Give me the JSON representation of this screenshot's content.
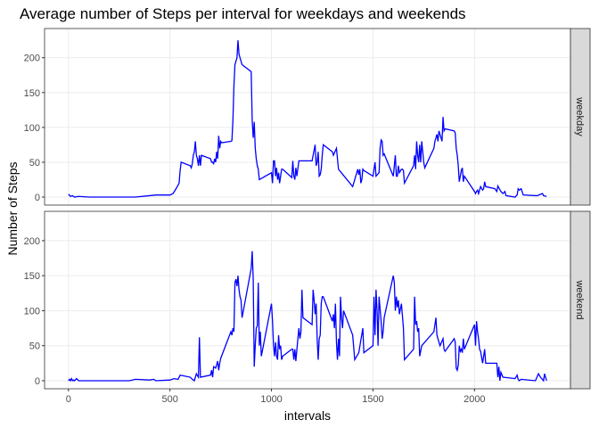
{
  "chart_data": {
    "type": "line",
    "title": "Average number of Steps per interval for weekdays and weekends",
    "x_label": "intervals",
    "y_label": "Number of Steps",
    "facet": true,
    "grid": true,
    "xlim": [
      -117.75,
      2472.75
    ],
    "xticks": [
      0,
      500,
      1000,
      1500,
      2000
    ],
    "ylim": [
      -11.5,
      241.9
    ],
    "yticks": [
      0,
      50,
      100,
      150,
      200
    ],
    "series": [
      {
        "name": "weekday",
        "color": "#0000ff",
        "x": [
          0,
          10,
          20,
          30,
          50,
          100,
          200,
          300,
          330,
          400,
          430,
          500,
          515,
          530,
          545,
          550,
          555,
          600,
          605,
          610,
          615,
          620,
          625,
          630,
          635,
          640,
          645,
          650,
          655,
          700,
          705,
          710,
          715,
          720,
          725,
          730,
          735,
          740,
          745,
          750,
          755,
          800,
          805,
          810,
          815,
          820,
          825,
          830,
          835,
          840,
          845,
          850,
          855,
          900,
          905,
          910,
          915,
          920,
          925,
          930,
          935,
          940,
          1000,
          1005,
          1010,
          1015,
          1020,
          1025,
          1030,
          1035,
          1040,
          1050,
          1055,
          1100,
          1105,
          1110,
          1115,
          1120,
          1125,
          1135,
          1200,
          1215,
          1220,
          1225,
          1230,
          1235,
          1240,
          1245,
          1250,
          1255,
          1300,
          1305,
          1320,
          1330,
          1400,
          1425,
          1430,
          1435,
          1440,
          1445,
          1450,
          1455,
          1500,
          1510,
          1515,
          1530,
          1535,
          1540,
          1545,
          1550,
          1555,
          1600,
          1605,
          1610,
          1615,
          1620,
          1625,
          1630,
          1640,
          1645,
          1650,
          1655,
          1700,
          1705,
          1710,
          1715,
          1720,
          1725,
          1730,
          1735,
          1740,
          1745,
          1750,
          1755,
          1800,
          1805,
          1810,
          1815,
          1820,
          1825,
          1830,
          1840,
          1845,
          1850,
          1855,
          1900,
          1905,
          1910,
          1915,
          1920,
          1925,
          1930,
          1935,
          1940,
          1945,
          1950,
          2000,
          2005,
          2010,
          2015,
          2020,
          2030,
          2040,
          2045,
          2050,
          2055,
          2100,
          2110,
          2115,
          2130,
          2140,
          2150,
          2155,
          2200,
          2210,
          2215,
          2220,
          2230,
          2240,
          2300,
          2310,
          2325,
          2335,
          2340,
          2355
        ],
        "values": [
          4,
          1,
          2,
          0,
          1,
          0,
          0,
          0,
          0,
          2,
          3,
          3,
          5,
          12,
          20,
          38,
          50,
          45,
          42,
          48,
          60,
          65,
          80,
          60,
          55,
          45,
          60,
          45,
          60,
          55,
          50,
          50,
          48,
          55,
          50,
          65,
          55,
          88,
          70,
          80,
          78,
          80,
          81,
          110,
          160,
          190,
          195,
          200,
          225,
          205,
          200,
          195,
          190,
          180,
          110,
          85,
          108,
          70,
          55,
          45,
          40,
          25,
          35,
          20,
          52,
          52,
          30,
          42,
          25,
          35,
          20,
          40,
          40,
          28,
          52,
          30,
          25,
          42,
          30,
          52,
          52,
          75,
          45,
          50,
          65,
          30,
          32,
          40,
          60,
          75,
          65,
          60,
          70,
          40,
          15,
          40,
          32,
          40,
          20,
          25,
          40,
          38,
          30,
          50,
          30,
          35,
          70,
          82,
          80,
          60,
          62,
          30,
          45,
          60,
          30,
          30,
          45,
          35,
          40,
          40,
          38,
          20,
          45,
          60,
          40,
          80,
          60,
          50,
          75,
          50,
          80,
          65,
          50,
          42,
          70,
          80,
          85,
          90,
          80,
          95,
          90,
          80,
          115,
          95,
          98,
          95,
          92,
          70,
          60,
          45,
          22,
          30,
          38,
          42,
          22,
          30,
          8,
          5,
          8,
          10,
          5,
          15,
          10,
          12,
          22,
          15,
          12,
          8,
          16,
          8,
          5,
          8,
          2,
          0,
          3,
          12,
          10,
          12,
          3,
          2,
          2,
          4,
          5,
          2,
          1
        ]
      },
      {
        "name": "weekend",
        "color": "#0000ff",
        "x": [
          0,
          5,
          10,
          15,
          20,
          25,
          30,
          40,
          50,
          100,
          200,
          300,
          330,
          400,
          420,
          430,
          500,
          520,
          540,
          550,
          600,
          610,
          620,
          630,
          640,
          645,
          650,
          700,
          705,
          710,
          715,
          725,
          735,
          740,
          745,
          750,
          800,
          805,
          810,
          815,
          820,
          825,
          830,
          835,
          840,
          845,
          850,
          855,
          900,
          905,
          910,
          915,
          920,
          925,
          930,
          935,
          940,
          945,
          950,
          1000,
          1005,
          1010,
          1015,
          1020,
          1025,
          1030,
          1035,
          1040,
          1045,
          1050,
          1055,
          1100,
          1105,
          1110,
          1115,
          1120,
          1130,
          1135,
          1140,
          1145,
          1150,
          1155,
          1200,
          1205,
          1210,
          1215,
          1220,
          1225,
          1230,
          1235,
          1240,
          1245,
          1250,
          1255,
          1300,
          1305,
          1310,
          1315,
          1320,
          1325,
          1330,
          1335,
          1340,
          1345,
          1350,
          1355,
          1400,
          1410,
          1430,
          1450,
          1455,
          1500,
          1505,
          1510,
          1515,
          1520,
          1525,
          1530,
          1540,
          1545,
          1550,
          1555,
          1600,
          1605,
          1610,
          1615,
          1620,
          1625,
          1630,
          1640,
          1650,
          1655,
          1700,
          1705,
          1710,
          1715,
          1720,
          1725,
          1730,
          1740,
          1800,
          1810,
          1815,
          1820,
          1830,
          1845,
          1850,
          1855,
          1900,
          1905,
          1910,
          1915,
          1920,
          1925,
          1930,
          1935,
          1940,
          1945,
          1950,
          2000,
          2005,
          2010,
          2015,
          2020,
          2025,
          2030,
          2040,
          2050,
          2055,
          2100,
          2110,
          2115,
          2120,
          2125,
          2130,
          2140,
          2200,
          2210,
          2215,
          2220,
          2230,
          2300,
          2315,
          2325,
          2340,
          2345,
          2350,
          2355
        ],
        "values": [
          0,
          2,
          0,
          3,
          0,
          1,
          0,
          3,
          0,
          0,
          0,
          0,
          2,
          1,
          2,
          0,
          1,
          3,
          2,
          8,
          5,
          2,
          0,
          10,
          5,
          62,
          5,
          8,
          15,
          5,
          20,
          18,
          28,
          15,
          25,
          32,
          70,
          65,
          75,
          70,
          140,
          145,
          135,
          150,
          130,
          120,
          115,
          90,
          160,
          185,
          145,
          20,
          50,
          75,
          78,
          140,
          50,
          70,
          35,
          110,
          85,
          50,
          35,
          55,
          35,
          30,
          65,
          45,
          50,
          30,
          35,
          45,
          45,
          30,
          45,
          28,
          60,
          75,
          60,
          70,
          130,
          90,
          80,
          130,
          115,
          95,
          110,
          60,
          30,
          60,
          65,
          110,
          120,
          120,
          85,
          95,
          75,
          110,
          55,
          30,
          60,
          35,
          120,
          90,
          75,
          100,
          65,
          30,
          40,
          75,
          40,
          50,
          120,
          65,
          130,
          100,
          50,
          120,
          85,
          60,
          70,
          90,
          150,
          140,
          100,
          120,
          105,
          115,
          95,
          110,
          75,
          30,
          45,
          120,
          80,
          85,
          70,
          75,
          35,
          50,
          70,
          90,
          65,
          60,
          50,
          60,
          45,
          42,
          60,
          55,
          18,
          15,
          22,
          50,
          42,
          45,
          40,
          60,
          45,
          80,
          50,
          85,
          70,
          60,
          45,
          42,
          25,
          45,
          25,
          25,
          25,
          5,
          20,
          0,
          12,
          5,
          3,
          8,
          2,
          0,
          2,
          0,
          10,
          5,
          0,
          10,
          5,
          0
        ]
      }
    ]
  }
}
